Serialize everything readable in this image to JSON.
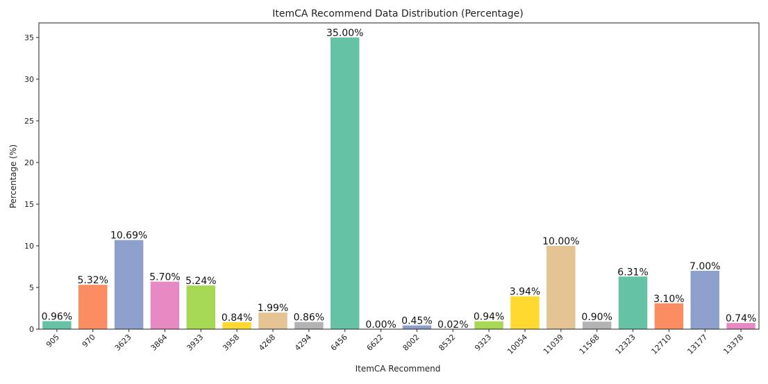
{
  "chart_data": {
    "type": "bar",
    "title": "ItemCA Recommend Data Distribution (Percentage)",
    "xlabel": "ItemCA Recommend",
    "ylabel": "Percentage (%)",
    "ylim": [
      0,
      36.75
    ],
    "yticks": [
      0,
      5,
      10,
      15,
      20,
      25,
      30,
      35
    ],
    "grid": false,
    "categories": [
      "905",
      "970",
      "3623",
      "3864",
      "3933",
      "3958",
      "4268",
      "4294",
      "6456",
      "6622",
      "8002",
      "8532",
      "9323",
      "10054",
      "11039",
      "11568",
      "12323",
      "12710",
      "13177",
      "13378"
    ],
    "values": [
      0.96,
      5.32,
      10.69,
      5.7,
      5.24,
      0.84,
      1.99,
      0.86,
      35.0,
      0.0,
      0.45,
      0.02,
      0.94,
      3.94,
      10.0,
      0.9,
      6.31,
      3.1,
      7.0,
      0.74
    ],
    "labels": [
      "0.96%",
      "5.32%",
      "10.69%",
      "5.70%",
      "5.24%",
      "0.84%",
      "1.99%",
      "0.86%",
      "35.00%",
      "0.00%",
      "0.45%",
      "0.02%",
      "0.94%",
      "3.94%",
      "10.00%",
      "0.90%",
      "6.31%",
      "3.10%",
      "7.00%",
      "0.74%"
    ],
    "palette": [
      "#66c2a5",
      "#fc8d62",
      "#8da0cb",
      "#e78ac3",
      "#a6d854",
      "#ffd92f",
      "#e5c494",
      "#b3b3b3"
    ]
  }
}
